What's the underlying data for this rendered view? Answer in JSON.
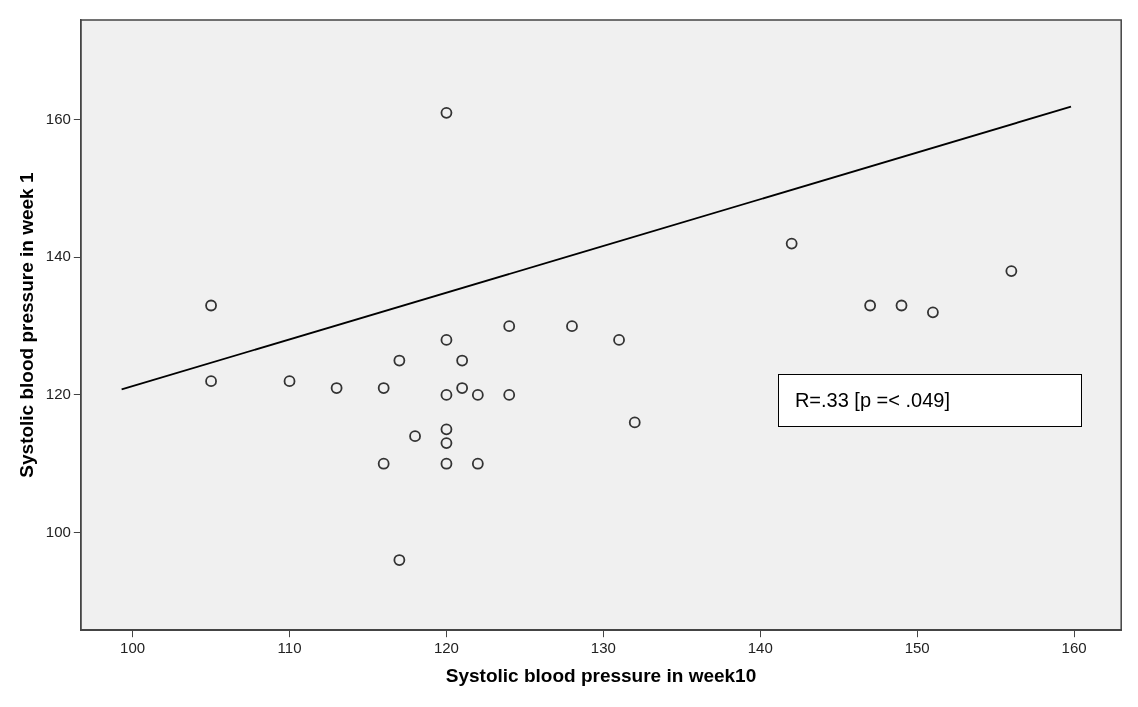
{
  "chart_data": {
    "type": "scatter",
    "xlabel": "Systolic blood pressure in week10",
    "ylabel": "Systolic blood pressure in week 1",
    "annotations": [
      "R=.33 [p =< .049]"
    ],
    "xlim": [
      96.7,
      163
    ],
    "xticks": [
      100,
      110,
      120,
      130,
      140,
      150,
      160
    ],
    "ylim": [
      85.8,
      174.5
    ],
    "yticks": [
      100,
      120,
      140,
      160
    ],
    "grid": false,
    "legend": false,
    "marker": "circle",
    "series": [
      {
        "color": "#333333",
        "x": [
          105,
          105,
          110,
          113,
          116,
          116,
          117,
          117,
          118,
          120,
          120,
          120,
          120,
          120,
          120,
          121,
          121,
          122,
          122,
          124,
          124,
          128,
          131,
          132,
          142,
          147,
          149,
          151,
          156
        ],
        "values": [
          133,
          122,
          122,
          121,
          121,
          110,
          125,
          96,
          114,
          161,
          128,
          120,
          115,
          113,
          110,
          125,
          121,
          120,
          110,
          130,
          120,
          130,
          128,
          116,
          142,
          133,
          133,
          132,
          138
        ]
      },
      {
        "type": "line",
        "color": "#000000",
        "line_style": "solid",
        "marker": "none",
        "x": [
          99.3,
          159.8
        ],
        "values": [
          120.8,
          161.9
        ]
      }
    ]
  }
}
